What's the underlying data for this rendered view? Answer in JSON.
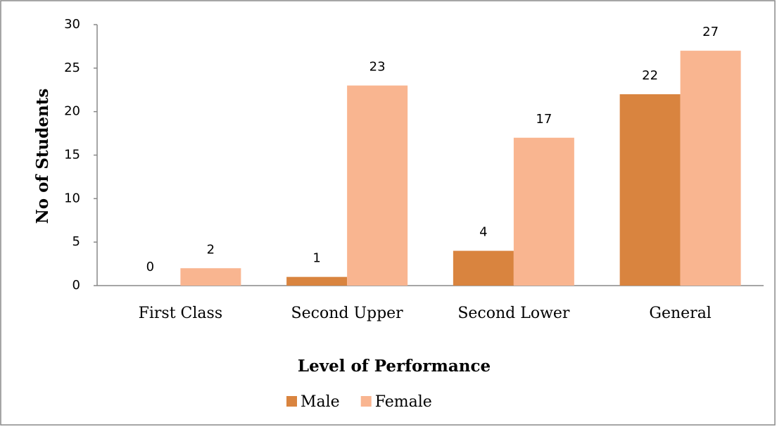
{
  "chart_data": {
    "type": "bar",
    "categories": [
      "First Class",
      "Second Upper",
      "Second Lower",
      "General"
    ],
    "series": [
      {
        "name": "Male",
        "color": "#d9843f",
        "values": [
          0,
          1,
          4,
          22
        ]
      },
      {
        "name": "Female",
        "color": "#f9b590",
        "values": [
          2,
          23,
          17,
          27
        ]
      }
    ],
    "x_label": "Level of Performance",
    "y_label": "No of Students",
    "ylim": [
      0,
      30
    ],
    "yticks": [
      0,
      5,
      10,
      15,
      20,
      25,
      30
    ],
    "grid": false,
    "legend": "bottom"
  }
}
